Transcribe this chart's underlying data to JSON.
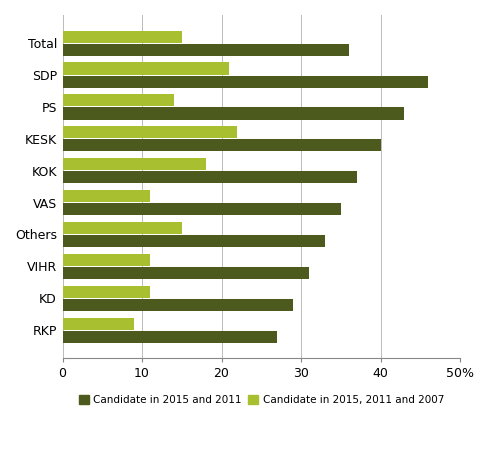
{
  "categories": [
    "Total",
    "SDP",
    "PS",
    "KESK",
    "KOK",
    "VAS",
    "Others",
    "VIHR",
    "KD",
    "RKP"
  ],
  "series_2015_2011": [
    36,
    46,
    43,
    40,
    37,
    35,
    33,
    31,
    29,
    27
  ],
  "series_2015_2011_2007": [
    15,
    21,
    14,
    22,
    18,
    11,
    15,
    11,
    11,
    9
  ],
  "color_2015_2011": "#4d5a1e",
  "color_2015_2011_2007": "#a8c030",
  "xticks": [
    0,
    10,
    20,
    30,
    40,
    50
  ],
  "xtick_labels": [
    "0",
    "10",
    "20",
    "30",
    "40",
    "50%"
  ],
  "legend_label_1": "Candidate in 2015 and 2011",
  "legend_label_2": "Candidate in 2015, 2011 and 2007",
  "background_color": "#ffffff",
  "grid_color": "#bbbbbb"
}
